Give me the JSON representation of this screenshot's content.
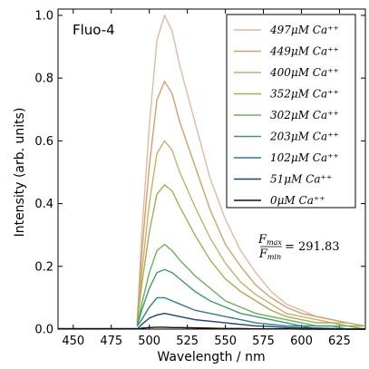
{
  "chart_data": {
    "type": "line",
    "title": "Fluo-4",
    "xlabel": "Wavelength / nm",
    "ylabel": "Intensity (arb. units)",
    "xlim": [
      440,
      642
    ],
    "ylim": [
      0.0,
      1.02
    ],
    "xticks": [
      "450",
      "475",
      "500",
      "525",
      "550",
      "575",
      "600",
      "625"
    ],
    "yticks": [
      "0.0",
      "0.2",
      "0.4",
      "0.6",
      "0.8",
      "1.0"
    ],
    "grid": false,
    "legend_position": "top-right",
    "annotation": {
      "numerator": "F",
      "numerator_sub": "max",
      "denominator": "F",
      "denominator_sub": "min",
      "value": "= 291.83"
    },
    "x": [
      492,
      495,
      500,
      505,
      510,
      515,
      520,
      530,
      540,
      550,
      560,
      570,
      580,
      590,
      600,
      610,
      620,
      630,
      642
    ],
    "series": [
      {
        "name": "497μM Ca⁺⁺",
        "color": "#e2b9a0",
        "values": [
          0.02,
          0.3,
          0.65,
          0.92,
          1.0,
          0.95,
          0.84,
          0.66,
          0.48,
          0.35,
          0.25,
          0.18,
          0.12,
          0.08,
          0.06,
          0.04,
          0.03,
          0.02,
          0.01
        ]
      },
      {
        "name": "449μM Ca⁺⁺",
        "color": "#d3a06c",
        "values": [
          0.02,
          0.24,
          0.52,
          0.73,
          0.79,
          0.75,
          0.66,
          0.52,
          0.38,
          0.27,
          0.2,
          0.14,
          0.1,
          0.07,
          0.05,
          0.04,
          0.03,
          0.02,
          0.01
        ]
      },
      {
        "name": "400μM Ca⁺⁺",
        "color": "#c2b36a",
        "values": [
          0.02,
          0.18,
          0.4,
          0.56,
          0.6,
          0.57,
          0.5,
          0.39,
          0.29,
          0.21,
          0.15,
          0.11,
          0.08,
          0.05,
          0.04,
          0.03,
          0.02,
          0.02,
          0.01
        ]
      },
      {
        "name": "352μM Ca⁺⁺",
        "color": "#a6ae54",
        "values": [
          0.02,
          0.14,
          0.31,
          0.43,
          0.46,
          0.44,
          0.39,
          0.3,
          0.22,
          0.16,
          0.12,
          0.09,
          0.06,
          0.04,
          0.03,
          0.02,
          0.02,
          0.01,
          0.01
        ]
      },
      {
        "name": "302μM Ca⁺⁺",
        "color": "#6db059",
        "values": [
          0.01,
          0.08,
          0.18,
          0.25,
          0.27,
          0.25,
          0.22,
          0.17,
          0.13,
          0.09,
          0.07,
          0.05,
          0.04,
          0.03,
          0.02,
          0.01,
          0.01,
          0.01,
          0.0
        ]
      },
      {
        "name": "203μM Ca⁺⁺",
        "color": "#3f9c6a",
        "values": [
          0.01,
          0.06,
          0.13,
          0.18,
          0.19,
          0.18,
          0.16,
          0.12,
          0.09,
          0.07,
          0.05,
          0.04,
          0.03,
          0.02,
          0.01,
          0.01,
          0.01,
          0.0,
          0.0
        ]
      },
      {
        "name": "102μM Ca⁺⁺",
        "color": "#2f7f83",
        "values": [
          0.01,
          0.03,
          0.07,
          0.1,
          0.1,
          0.09,
          0.08,
          0.06,
          0.05,
          0.04,
          0.03,
          0.02,
          0.015,
          0.01,
          0.01,
          0.0,
          0.0,
          0.0,
          0.0
        ]
      },
      {
        "name": "51μM Ca⁺⁺",
        "color": "#1f3f7f",
        "values": [
          0.0,
          0.015,
          0.035,
          0.045,
          0.05,
          0.045,
          0.04,
          0.03,
          0.025,
          0.02,
          0.015,
          0.01,
          0.008,
          0.005,
          0.004,
          0.003,
          0.002,
          0.0,
          0.0
        ]
      },
      {
        "name": "0μM Ca⁺⁺",
        "color": "#111111",
        "values": [
          0.0,
          0.003,
          0.005,
          0.006,
          0.006,
          0.005,
          0.005,
          0.004,
          0.003,
          0.002,
          0.002,
          0.001,
          0.001,
          0.001,
          0.0,
          0.0,
          0.0,
          0.0,
          0.0
        ]
      }
    ]
  }
}
